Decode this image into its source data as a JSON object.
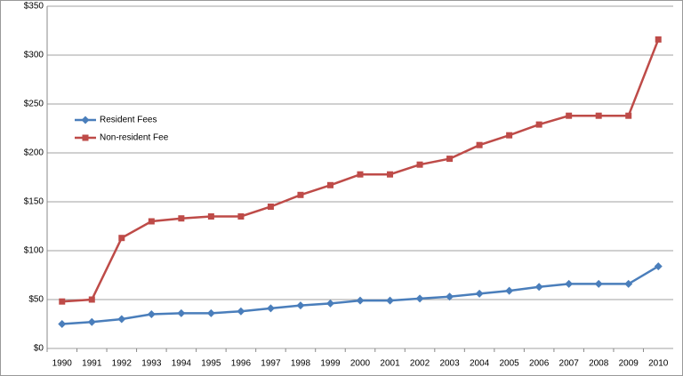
{
  "chart_data": {
    "type": "line",
    "categories": [
      "1990",
      "1991",
      "1992",
      "1993",
      "1994",
      "1995",
      "1996",
      "1997",
      "1998",
      "1999",
      "2000",
      "2001",
      "2002",
      "2003",
      "2004",
      "2005",
      "2006",
      "2007",
      "2008",
      "2009",
      "2010"
    ],
    "series": [
      {
        "name": "Resident Fees",
        "color": "#4a7ebb",
        "marker": "diamond",
        "values": [
          25,
          27,
          30,
          35,
          36,
          36,
          38,
          41,
          44,
          46,
          49,
          49,
          51,
          53,
          56,
          59,
          63,
          66,
          66,
          66,
          84
        ]
      },
      {
        "name": "Non-resident Fee",
        "color": "#be4b48",
        "marker": "square",
        "values": [
          48,
          50,
          113,
          130,
          133,
          135,
          135,
          145,
          157,
          167,
          178,
          178,
          188,
          194,
          208,
          218,
          229,
          238,
          238,
          238,
          316
        ]
      }
    ],
    "ylim": [
      0,
      350
    ],
    "yticks": [
      {
        "value": 0,
        "label": "$0"
      },
      {
        "value": 50,
        "label": "$50"
      },
      {
        "value": 100,
        "label": "$100"
      },
      {
        "value": 150,
        "label": "$150"
      },
      {
        "value": 200,
        "label": "$200"
      },
      {
        "value": 250,
        "label": "$250"
      },
      {
        "value": 300,
        "label": "$300"
      },
      {
        "value": 350,
        "label": "$350"
      }
    ],
    "grid": true,
    "legend": "left"
  }
}
